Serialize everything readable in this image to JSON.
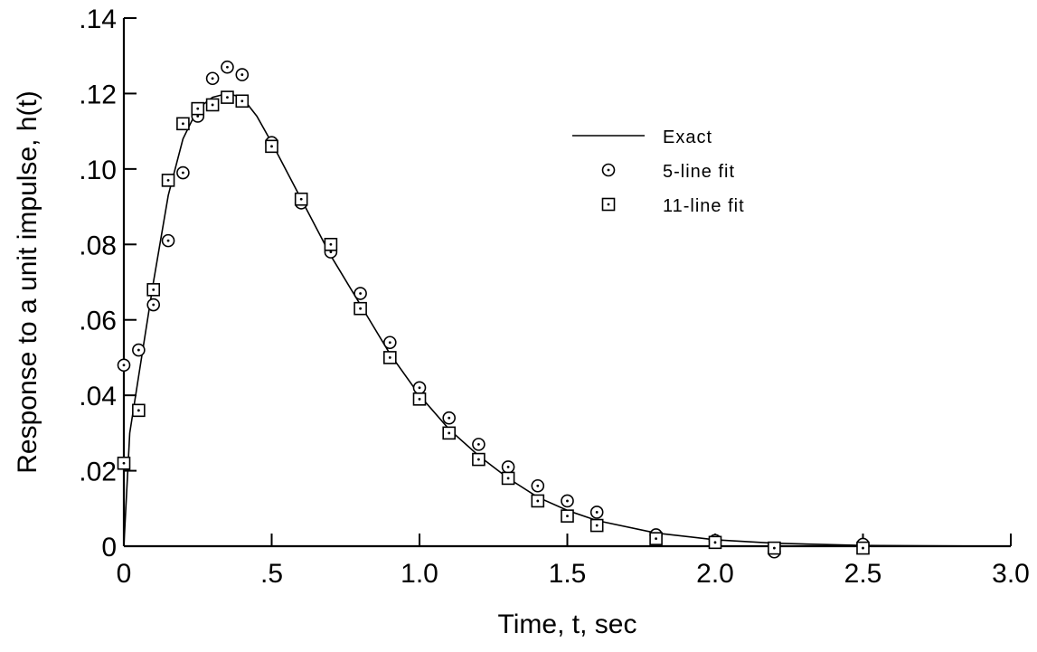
{
  "chart_data": {
    "type": "scatter",
    "title": "",
    "xlabel": "Time, t, sec",
    "ylabel": "Response to a unit impulse, h(t)",
    "xlim": [
      0,
      3.0
    ],
    "ylim": [
      0,
      0.14
    ],
    "x_ticks": [
      0,
      0.5,
      1.0,
      1.5,
      2.0,
      2.5,
      3.0
    ],
    "x_tick_labels": [
      "0",
      ".5",
      "1.0",
      "1.5",
      "2.0",
      "2.5",
      "3.0"
    ],
    "y_ticks": [
      0,
      0.02,
      0.04,
      0.06,
      0.08,
      0.1,
      0.12,
      0.14
    ],
    "y_tick_labels": [
      "0",
      ".02",
      ".04",
      ".06",
      ".08",
      ".10",
      ".12",
      ".14"
    ],
    "grid": false,
    "legend_position": "upper-right",
    "series": [
      {
        "name": "Exact",
        "style": "line",
        "x": [
          0,
          0.02,
          0.05,
          0.1,
          0.15,
          0.2,
          0.25,
          0.3,
          0.35,
          0.4,
          0.45,
          0.5,
          0.6,
          0.7,
          0.8,
          0.9,
          1.0,
          1.1,
          1.2,
          1.3,
          1.4,
          1.5,
          1.6,
          1.8,
          2.0,
          2.2,
          2.5,
          3.0
        ],
        "y": [
          0,
          0.03,
          0.045,
          0.07,
          0.093,
          0.108,
          0.116,
          0.119,
          0.12,
          0.119,
          0.114,
          0.107,
          0.092,
          0.077,
          0.064,
          0.051,
          0.04,
          0.031,
          0.024,
          0.018,
          0.013,
          0.0095,
          0.0068,
          0.0035,
          0.0017,
          0.0008,
          0.0002,
          0
        ]
      },
      {
        "name": "5-line fit",
        "style": "circle",
        "x": [
          0,
          0.05,
          0.1,
          0.15,
          0.2,
          0.25,
          0.3,
          0.35,
          0.4,
          0.5,
          0.6,
          0.7,
          0.8,
          0.9,
          1.0,
          1.1,
          1.2,
          1.3,
          1.4,
          1.5,
          1.6,
          1.8,
          2.0,
          2.2,
          2.5
        ],
        "y": [
          0.048,
          0.052,
          0.064,
          0.081,
          0.099,
          0.114,
          0.124,
          0.127,
          0.125,
          0.107,
          0.091,
          0.078,
          0.067,
          0.054,
          0.042,
          0.034,
          0.027,
          0.021,
          0.016,
          0.012,
          0.009,
          0.003,
          0.0015,
          -0.0015,
          0.0005
        ]
      },
      {
        "name": "11-line fit",
        "style": "square",
        "x": [
          0,
          0.05,
          0.1,
          0.15,
          0.2,
          0.25,
          0.3,
          0.35,
          0.4,
          0.5,
          0.6,
          0.7,
          0.8,
          0.9,
          1.0,
          1.1,
          1.2,
          1.3,
          1.4,
          1.5,
          1.6,
          1.8,
          2.0,
          2.2,
          2.5
        ],
        "y": [
          0.022,
          0.036,
          0.068,
          0.097,
          0.112,
          0.116,
          0.117,
          0.119,
          0.118,
          0.106,
          0.092,
          0.08,
          0.063,
          0.05,
          0.039,
          0.03,
          0.023,
          0.018,
          0.012,
          0.008,
          0.0055,
          0.002,
          0.001,
          -0.0005,
          -0.0005
        ]
      }
    ]
  }
}
